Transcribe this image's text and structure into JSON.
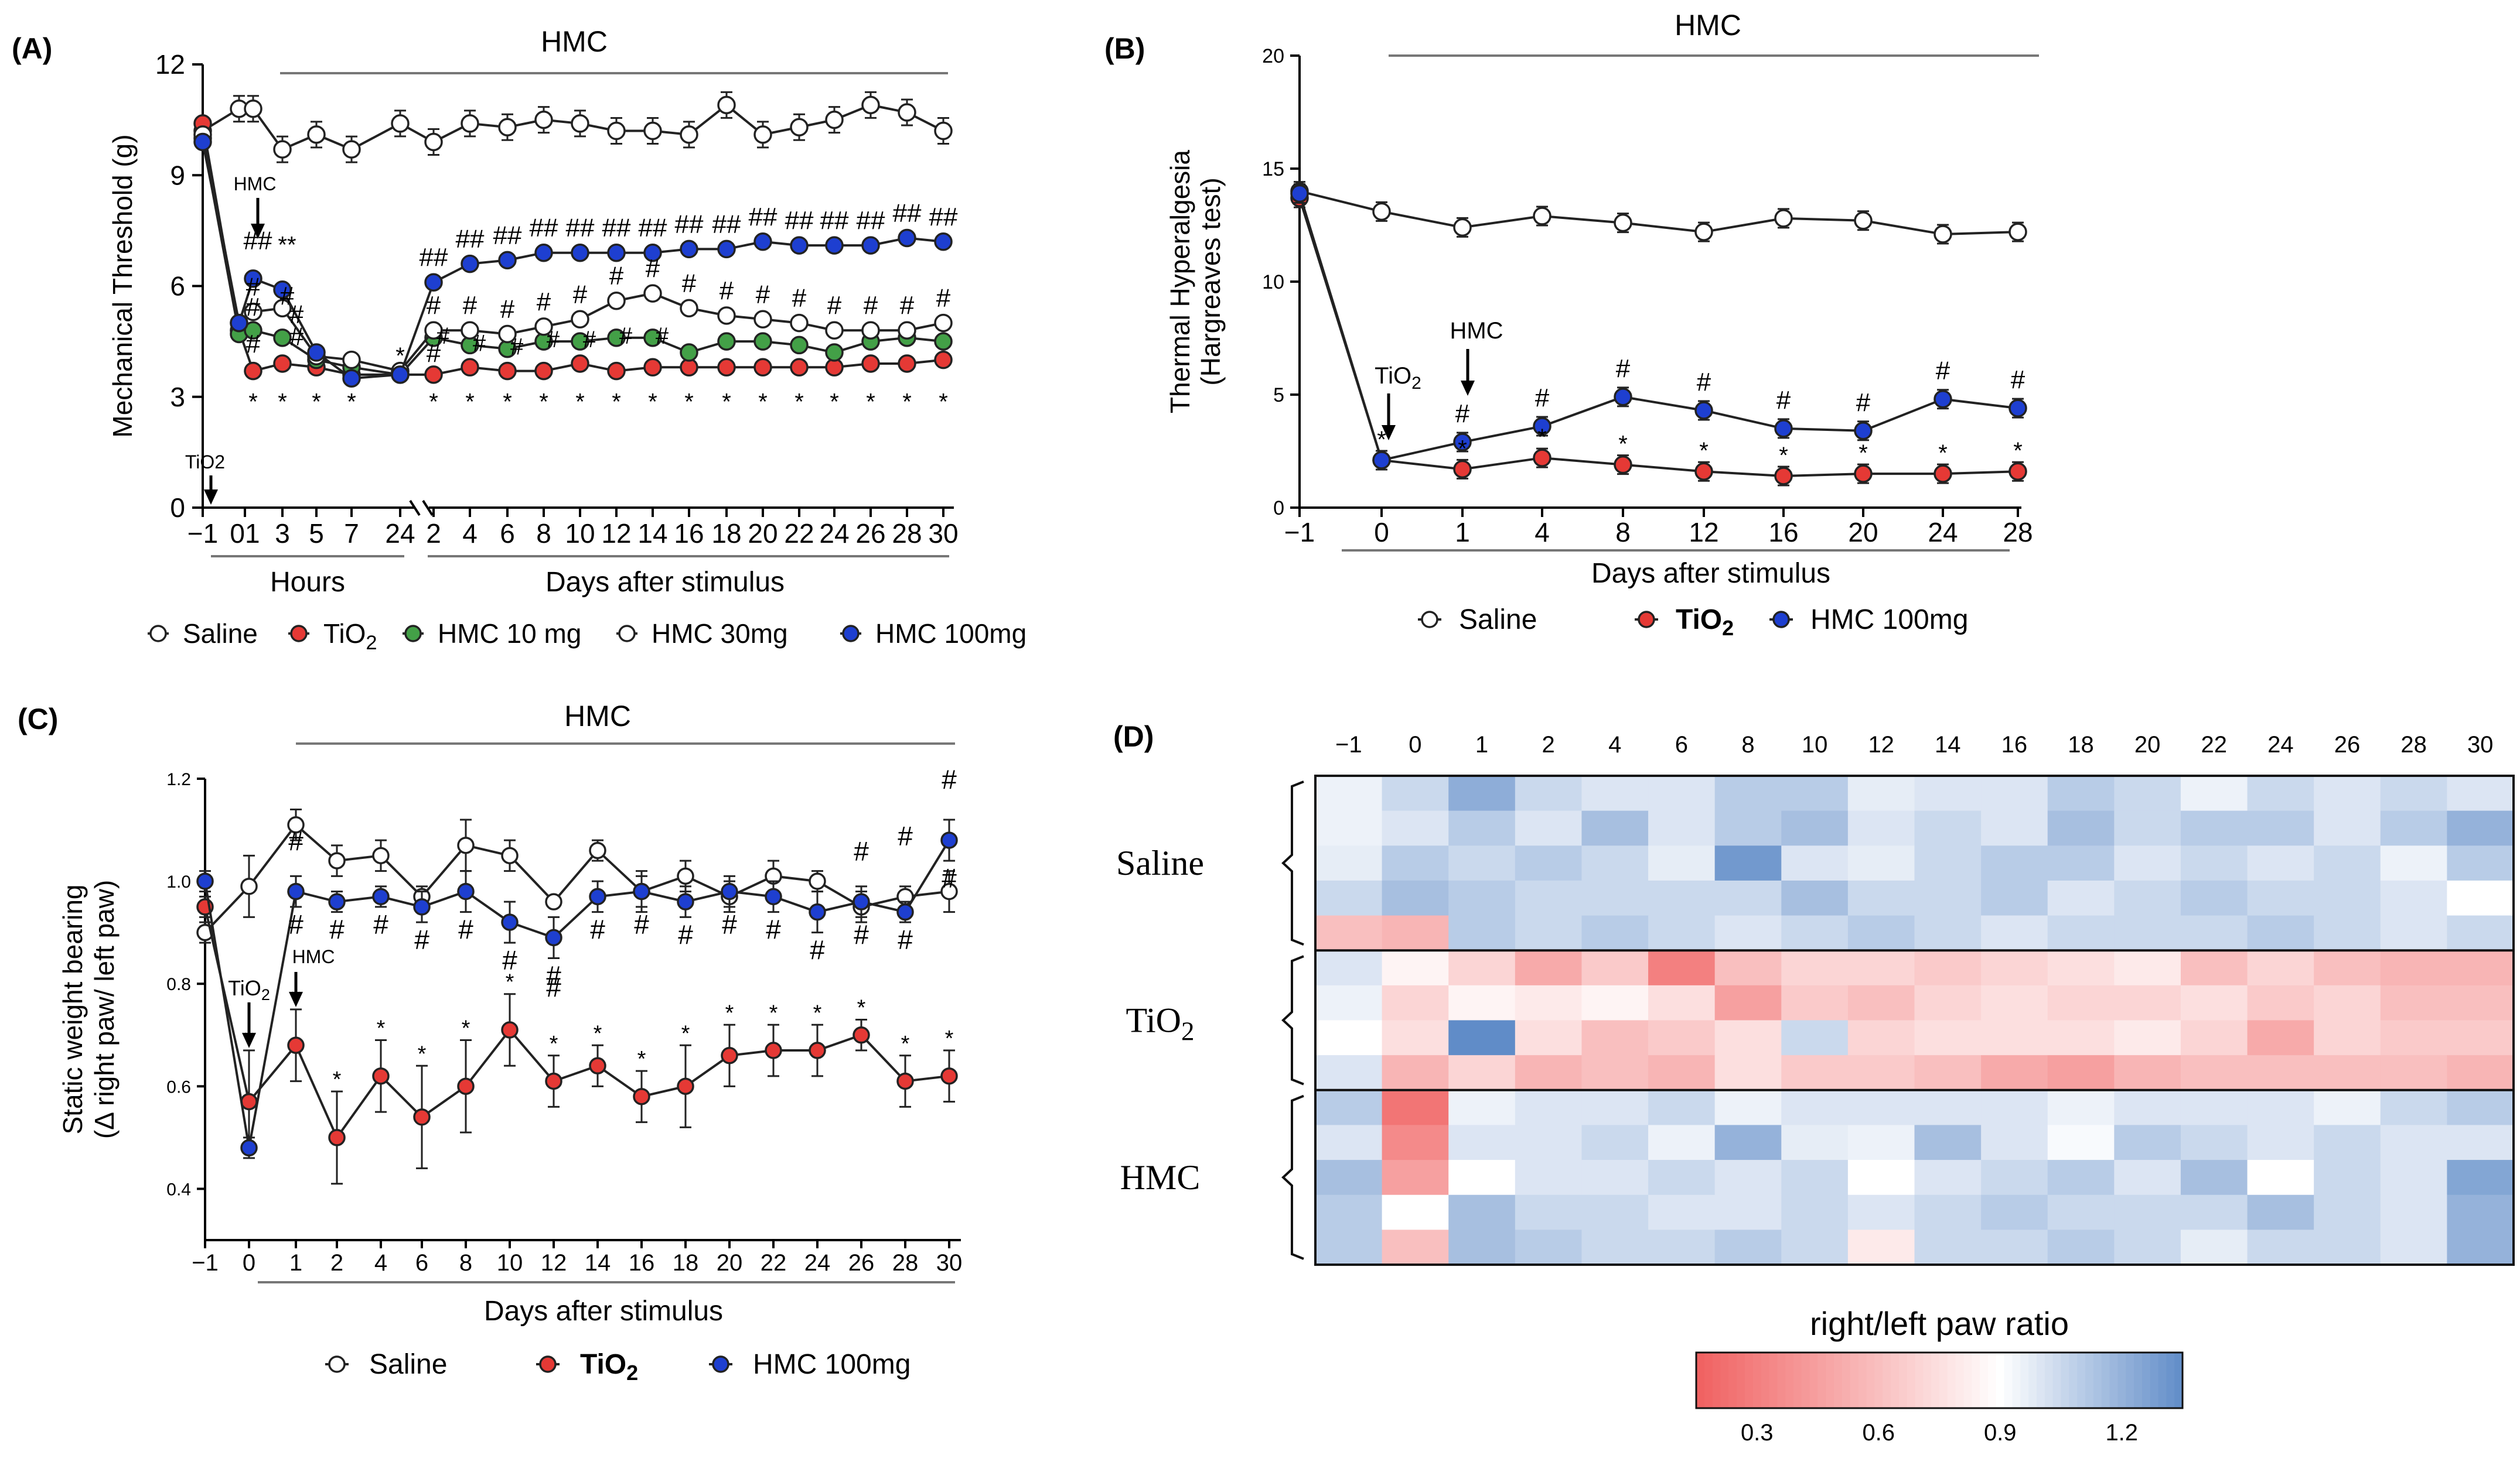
{
  "figure": {
    "colors": {
      "saline": "#ffffff",
      "tio2": "#e53935",
      "hmc10": "#43a047",
      "hmc30": "#ffffff",
      "hmc100": "#1e3fd0",
      "axis": "#000000",
      "bracket": "#777777"
    }
  },
  "chart_data": [
    {
      "panel": "(A)",
      "type": "line",
      "title": "HMC",
      "ylabel": "Mechanical Threshold (g)",
      "ylim": [
        0,
        12
      ],
      "yticks": [
        "0",
        "3",
        "6",
        "9",
        "12"
      ],
      "x_labels": [
        "-1",
        "0",
        "1",
        "3",
        "5",
        "7",
        "24",
        "2",
        "4",
        "6",
        "8",
        "10",
        "12",
        "14",
        "16",
        "18",
        "20",
        "22",
        "24",
        "26",
        "28",
        "30"
      ],
      "x_label_text": [
        "−1",
        "01",
        "3",
        "5",
        "7",
        "24",
        "2",
        "4",
        "6",
        "8",
        "10",
        "12",
        "14",
        "16",
        "18",
        "20",
        "22",
        "24",
        "26",
        "28",
        "30"
      ],
      "group_labels": [
        "Hours",
        "Days after stimulus"
      ],
      "arrow_labels": {
        "stimulus": "TiO2",
        "treatment": "HMC"
      },
      "series": [
        {
          "name": "Saline",
          "color": "saline",
          "values": [
            10.2,
            10.8,
            10.8,
            9.7,
            10.1,
            9.7,
            10.4,
            9.9,
            10.4,
            10.3,
            10.5,
            10.4,
            10.2,
            10.2,
            10.1,
            10.9,
            10.1,
            10.3,
            10.5,
            10.9,
            10.7,
            10.2
          ]
        },
        {
          "name": "TiO2",
          "color": "tio2",
          "values": [
            10.4,
            4.8,
            3.7,
            3.9,
            3.8,
            3.6,
            3.6,
            3.6,
            3.8,
            3.7,
            3.7,
            3.9,
            3.7,
            3.8,
            3.8,
            3.8,
            3.8,
            3.8,
            3.8,
            3.9,
            3.9,
            4.0
          ]
        },
        {
          "name": "HMC 10 mg",
          "color": "hmc10",
          "values": [
            10.0,
            4.7,
            4.8,
            4.6,
            4.0,
            3.8,
            3.6,
            4.6,
            4.4,
            4.3,
            4.5,
            4.5,
            4.6,
            4.6,
            4.2,
            4.5,
            4.5,
            4.4,
            4.2,
            4.5,
            4.6,
            4.5
          ]
        },
        {
          "name": "HMC 30mg",
          "color": "hmc30",
          "values": [
            10.1,
            5.0,
            5.3,
            5.4,
            4.1,
            4.0,
            3.7,
            4.8,
            4.8,
            4.7,
            4.9,
            5.1,
            5.6,
            5.8,
            5.4,
            5.2,
            5.1,
            5.0,
            4.8,
            4.8,
            4.8,
            5.0
          ]
        },
        {
          "name": "HMC 100mg",
          "color": "hmc100",
          "values": [
            9.9,
            5.0,
            6.2,
            5.9,
            4.2,
            3.5,
            3.6,
            6.1,
            6.6,
            6.7,
            6.9,
            6.9,
            6.9,
            6.9,
            7.0,
            7.0,
            7.2,
            7.1,
            7.1,
            7.1,
            7.3,
            7.2
          ]
        }
      ],
      "annotations": {
        "star": "*",
        "double_star": "**",
        "hash": "#",
        "double_hash": "##"
      }
    },
    {
      "panel": "(B)",
      "type": "line",
      "title": "HMC",
      "ylabel": [
        "Thermal Hyperalgesia",
        "(Hargreaves test)"
      ],
      "ylim": [
        0,
        20
      ],
      "yticks": [
        "0",
        "5",
        "10",
        "15",
        "20"
      ],
      "x_labels": [
        "−1",
        "0",
        "1",
        "4",
        "8",
        "12",
        "16",
        "20",
        "24",
        "28"
      ],
      "xlabel": "Days after stimulus",
      "arrow_labels": {
        "stimulus": "TiO2",
        "treatment": "HMC"
      },
      "series": [
        {
          "name": "Saline",
          "color": "saline",
          "values": [
            14.0,
            13.1,
            12.4,
            12.9,
            12.6,
            12.2,
            12.8,
            12.7,
            12.1,
            12.2
          ]
        },
        {
          "name": "TiO2",
          "color": "tio2",
          "values": [
            13.7,
            2.1,
            1.7,
            2.2,
            1.9,
            1.6,
            1.4,
            1.5,
            1.5,
            1.6
          ]
        },
        {
          "name": "HMC 100mg",
          "color": "hmc100",
          "values": [
            13.9,
            2.1,
            2.9,
            3.6,
            4.9,
            4.3,
            3.5,
            3.4,
            4.8,
            4.4
          ]
        }
      ]
    },
    {
      "panel": "(C)",
      "type": "line",
      "title": "HMC",
      "ylabel": [
        "Static weight bearing",
        "(Δ right paw/ left paw)"
      ],
      "ylim": [
        0.3,
        1.2
      ],
      "yticks": [
        "0.4",
        "0.6",
        "0.8",
        "1.0",
        "1.2"
      ],
      "x_labels": [
        "-1",
        "0",
        "1",
        "2",
        "4",
        "6",
        "8",
        "10",
        "12",
        "14",
        "16",
        "18",
        "20",
        "22",
        "24",
        "26",
        "28",
        "30"
      ],
      "xlabel": "Days after stimulus",
      "arrow_labels": {
        "stimulus": "TiO2",
        "treatment": "HMC"
      },
      "series": [
        {
          "name": "Saline",
          "color": "saline",
          "values": [
            0.9,
            0.99,
            1.11,
            1.04,
            1.05,
            0.97,
            1.07,
            1.05,
            0.96,
            1.06,
            0.98,
            1.01,
            0.97,
            1.01,
            1.0,
            0.95,
            0.97,
            0.98
          ]
        },
        {
          "name": "TiO2",
          "color": "tio2",
          "values": [
            0.95,
            0.57,
            0.68,
            0.5,
            0.62,
            0.54,
            0.6,
            0.71,
            0.61,
            0.64,
            0.58,
            0.6,
            0.66,
            0.67,
            0.67,
            0.7,
            0.61,
            0.62
          ]
        },
        {
          "name": "HMC 100mg",
          "color": "hmc100",
          "values": [
            1.0,
            0.48,
            0.98,
            0.96,
            0.97,
            0.95,
            0.98,
            0.92,
            0.89,
            0.97,
            0.98,
            0.96,
            0.98,
            0.97,
            0.94,
            0.96,
            0.94,
            1.08
          ]
        }
      ]
    },
    {
      "panel": "(D)",
      "type": "heatmap",
      "x_labels": [
        "−1",
        "0",
        "1",
        "2",
        "4",
        "6",
        "8",
        "10",
        "12",
        "14",
        "16",
        "18",
        "20",
        "22",
        "24",
        "26",
        "28",
        "30"
      ],
      "row_groups": [
        "Saline",
        "TiO2",
        "HMC"
      ],
      "colorbar_title": "right/left paw ratio",
      "colorbar_ticks": [
        "0.3",
        "0.6",
        "0.9",
        "1.2"
      ],
      "vmin": 0.15,
      "vmax": 1.35,
      "values": [
        [
          0.95,
          1.05,
          1.22,
          1.05,
          1.0,
          1.0,
          1.1,
          1.1,
          0.97,
          1.0,
          1.0,
          1.1,
          1.05,
          0.95,
          1.05,
          1.0,
          1.05,
          1.0
        ],
        [
          0.95,
          1.0,
          1.1,
          1.0,
          1.15,
          1.0,
          1.1,
          1.15,
          1.0,
          1.05,
          1.0,
          1.15,
          1.05,
          1.1,
          1.1,
          1.0,
          1.1,
          1.2
        ],
        [
          0.97,
          1.1,
          1.05,
          1.1,
          1.05,
          0.97,
          1.3,
          1.0,
          0.97,
          1.05,
          1.1,
          1.1,
          1.0,
          1.05,
          1.0,
          1.05,
          0.95,
          1.1
        ],
        [
          1.05,
          1.15,
          1.1,
          1.05,
          1.05,
          1.05,
          1.05,
          1.15,
          1.05,
          1.05,
          1.1,
          1.0,
          1.05,
          1.1,
          1.05,
          1.05,
          1.0,
          0.9
        ],
        [
          0.6,
          0.55,
          1.1,
          1.05,
          1.1,
          1.05,
          1.0,
          1.05,
          1.1,
          1.05,
          1.0,
          1.05,
          1.05,
          1.05,
          1.1,
          1.05,
          1.0,
          1.05
        ],
        [
          1.0,
          0.85,
          0.7,
          0.5,
          0.65,
          0.3,
          0.6,
          0.7,
          0.7,
          0.65,
          0.7,
          0.75,
          0.8,
          0.6,
          0.7,
          0.6,
          0.55,
          0.55
        ],
        [
          0.95,
          0.7,
          0.85,
          0.8,
          0.85,
          0.75,
          0.45,
          0.65,
          0.6,
          0.7,
          0.75,
          0.7,
          0.7,
          0.75,
          0.65,
          0.7,
          0.6,
          0.6
        ],
        [
          0.9,
          0.75,
          1.4,
          0.75,
          0.6,
          0.65,
          0.75,
          1.05,
          0.7,
          0.75,
          0.75,
          0.75,
          0.8,
          0.7,
          0.5,
          0.7,
          0.65,
          0.65
        ],
        [
          1.0,
          0.55,
          0.7,
          0.55,
          0.6,
          0.55,
          0.75,
          0.65,
          0.65,
          0.6,
          0.5,
          0.45,
          0.55,
          0.6,
          0.6,
          0.6,
          0.6,
          0.55
        ],
        [
          1.1,
          0.25,
          0.95,
          1.0,
          1.0,
          1.05,
          0.95,
          1.0,
          1.0,
          1.0,
          1.0,
          0.95,
          1.0,
          1.0,
          1.0,
          0.95,
          1.05,
          1.1
        ],
        [
          1.0,
          0.35,
          1.0,
          1.0,
          1.05,
          0.95,
          1.2,
          0.97,
          0.95,
          1.15,
          1.0,
          0.92,
          1.1,
          1.05,
          1.0,
          1.05,
          1.0,
          1.0
        ],
        [
          1.15,
          0.45,
          0.9,
          1.0,
          1.0,
          1.05,
          1.0,
          1.05,
          0.9,
          1.0,
          1.05,
          1.1,
          1.0,
          1.15,
          0.9,
          1.05,
          1.0,
          1.25
        ],
        [
          1.1,
          0.9,
          1.15,
          1.05,
          1.05,
          1.0,
          1.0,
          1.05,
          1.0,
          1.05,
          1.1,
          1.05,
          1.05,
          1.05,
          1.15,
          1.05,
          1.0,
          1.2
        ],
        [
          1.1,
          0.6,
          1.15,
          1.1,
          1.05,
          1.05,
          1.1,
          1.05,
          0.8,
          1.05,
          1.05,
          1.1,
          1.05,
          0.97,
          1.05,
          1.05,
          1.0,
          1.2
        ]
      ]
    }
  ],
  "legends": {
    "A": [
      "Saline",
      "TiO2",
      "HMC 10 mg",
      "HMC 30mg",
      "HMC 100mg"
    ],
    "B": [
      "Saline",
      "TiO2",
      "HMC 100mg"
    ],
    "C": [
      "Saline",
      "TiO2",
      "HMC 100mg"
    ]
  }
}
